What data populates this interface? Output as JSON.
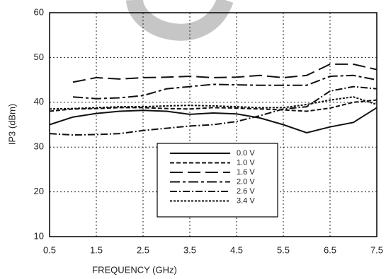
{
  "chart_data": {
    "type": "line",
    "xlabel": "FREQUENCY (GHz)",
    "ylabel": "IP3 (dBm)",
    "x": [
      0.5,
      1,
      1.5,
      2,
      2.5,
      3,
      3.5,
      4,
      4.5,
      5,
      5.5,
      6,
      6.5,
      7,
      7.5
    ],
    "xlim": [
      0.5,
      7.5
    ],
    "xticks": [
      0.5,
      1.5,
      2.5,
      3.5,
      4.5,
      5.5,
      6.5,
      7.5
    ],
    "ylim": [
      10,
      60
    ],
    "yticks": [
      10,
      20,
      30,
      40,
      50,
      60
    ],
    "grid": true,
    "series": [
      {
        "name": "0.0 V",
        "color": "#111111",
        "dash": "none",
        "values": [
          35,
          36.7,
          37.5,
          38,
          38.2,
          38,
          37.3,
          37.6,
          37.4,
          36.5,
          35,
          33.2,
          34.5,
          35.5,
          38.8
        ]
      },
      {
        "name": "1.0 V",
        "color": "#111111",
        "dash": "6,3",
        "values": [
          38,
          38.5,
          38.6,
          38.8,
          38.8,
          38.6,
          38.5,
          38.8,
          38.7,
          38.5,
          38.3,
          38,
          38.7,
          40,
          40.5
        ]
      },
      {
        "name": "1.6 V",
        "color": "#111111",
        "dash": "18,7",
        "values": [
          null,
          44.5,
          45.5,
          45.2,
          45.5,
          45.6,
          45.8,
          45.5,
          45.6,
          46,
          45.5,
          46,
          48.5,
          48.5,
          47.3
        ]
      },
      {
        "name": "2.0 V",
        "color": "#111111",
        "dash": "14,4,4,4",
        "values": [
          null,
          41.2,
          40.8,
          41,
          41.5,
          43,
          43.5,
          44,
          43.9,
          43.8,
          43.8,
          43.8,
          45.8,
          46,
          45
        ]
      },
      {
        "name": "2.6 V",
        "color": "#111111",
        "dash": "10,3,2,3",
        "values": [
          33,
          32.7,
          32.8,
          33,
          33.7,
          34.2,
          34.7,
          35,
          35.7,
          37,
          38.5,
          39,
          42.5,
          43.5,
          43
        ]
      },
      {
        "name": "3.4 V",
        "color": "#111111",
        "dash": "3,2",
        "values": [
          38.5,
          38.6,
          38.8,
          39,
          39,
          39.2,
          39.3,
          39.2,
          39,
          38.8,
          38.8,
          39.5,
          40.5,
          41.2,
          39.5
        ]
      }
    ]
  }
}
